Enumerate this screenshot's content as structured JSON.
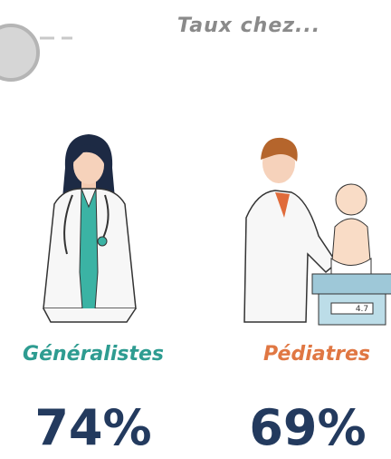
{
  "header": {
    "title": "Taux chez..."
  },
  "groups": [
    {
      "label": "Généralistes",
      "value": "74%"
    },
    {
      "label": "Pédiatres",
      "value": "69%"
    }
  ],
  "illustration": {
    "scale_reading": "4.7"
  }
}
